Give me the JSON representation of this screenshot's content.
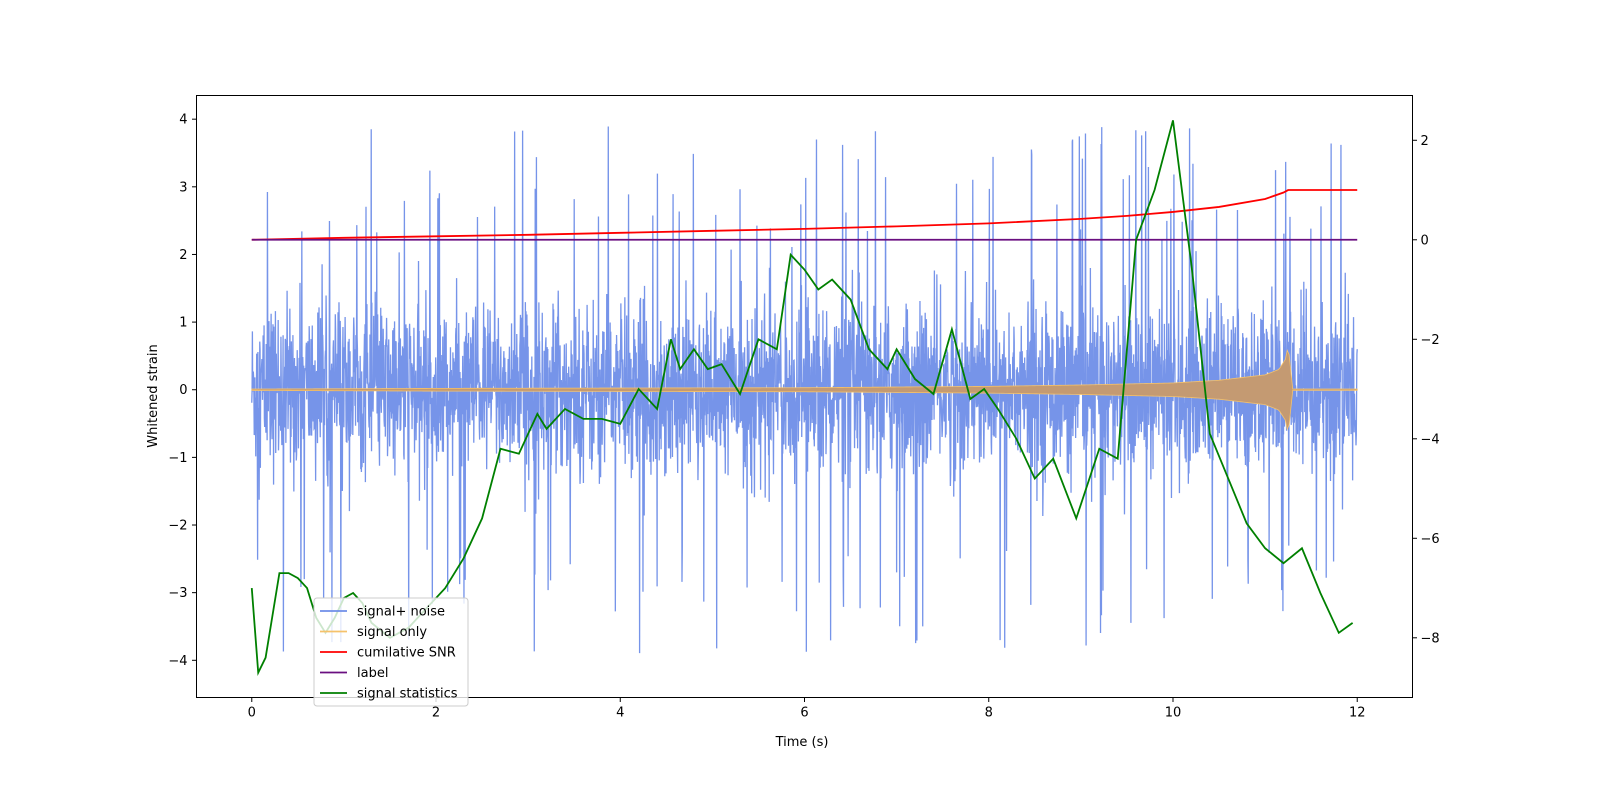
{
  "chart_data": {
    "type": "line",
    "title": "",
    "xlabel": "Time (s)",
    "ylabel": "Whitened strain",
    "y2label": "",
    "xlim": [
      -0.6,
      12.6
    ],
    "ylim": [
      -4.55,
      4.35
    ],
    "y2lim": [
      -9.2,
      2.9
    ],
    "xticks": [
      "0",
      "2",
      "4",
      "6",
      "8",
      "10",
      "12"
    ],
    "yticks": [
      "4",
      "3",
      "2",
      "1",
      "0",
      "−1",
      "−2",
      "−3",
      "−4"
    ],
    "y2ticks": [
      "2",
      "0",
      "−2",
      "−4",
      "−6",
      "−8"
    ],
    "grid": false,
    "legend_position": "lower-left",
    "legend": [
      "signal+ noise",
      "signal only",
      "cumilative SNR",
      "label",
      "signal statistics"
    ],
    "colors": {
      "noise": "#6f8ee8",
      "signal": "#f5c26b",
      "signal_fill": "#c49a72",
      "snr": "#ff0000",
      "label": "#6a0f80",
      "statistics": "#008000"
    },
    "series": [
      {
        "name": "signal+ noise",
        "axis": "left",
        "description_values": {
          "mean": 0.0,
          "typical_range": [
            -1.5,
            1.9
          ],
          "extremes": [
            -4.15,
            3.97
          ]
        }
      },
      {
        "name": "signal only",
        "axis": "left",
        "x": [
          0,
          2,
          4,
          6,
          8,
          9,
          10,
          10.5,
          11,
          11.15,
          11.22,
          11.25,
          11.3,
          12
        ],
        "envelope": [
          0.01,
          0.02,
          0.025,
          0.03,
          0.05,
          0.07,
          0.1,
          0.14,
          0.22,
          0.3,
          0.45,
          0.65,
          0.01,
          0.01
        ]
      },
      {
        "name": "cumilative SNR",
        "axis": "right",
        "x": [
          0,
          1,
          2,
          3,
          4,
          5,
          6,
          7,
          8,
          9,
          9.5,
          10,
          10.5,
          11,
          11.2,
          11.25,
          12
        ],
        "y": [
          0.0,
          0.04,
          0.07,
          0.1,
          0.14,
          0.18,
          0.22,
          0.27,
          0.33,
          0.42,
          0.48,
          0.56,
          0.66,
          0.82,
          0.95,
          1.0,
          1.0
        ]
      },
      {
        "name": "label",
        "axis": "right",
        "x": [
          0,
          12
        ],
        "y": [
          0,
          0
        ]
      },
      {
        "name": "signal statistics",
        "axis": "right",
        "x": [
          0,
          0.07,
          0.15,
          0.3,
          0.4,
          0.5,
          0.6,
          0.7,
          0.8,
          0.9,
          1.0,
          1.1,
          1.2,
          1.3,
          1.5,
          1.7,
          1.9,
          2.1,
          2.3,
          2.5,
          2.7,
          2.9,
          3.1,
          3.2,
          3.4,
          3.6,
          3.8,
          4.0,
          4.2,
          4.4,
          4.55,
          4.65,
          4.8,
          4.95,
          5.1,
          5.3,
          5.5,
          5.7,
          5.85,
          6.0,
          6.15,
          6.3,
          6.5,
          6.7,
          6.9,
          7.0,
          7.2,
          7.4,
          7.6,
          7.8,
          7.95,
          8.1,
          8.3,
          8.5,
          8.7,
          8.95,
          9.2,
          9.4,
          9.6,
          9.8,
          10.0,
          10.2,
          10.4,
          10.6,
          10.8,
          11.0,
          11.2,
          11.4,
          11.6,
          11.8,
          11.95
        ],
        "y": [
          -7.0,
          -8.7,
          -8.4,
          -6.7,
          -6.7,
          -6.8,
          -7.0,
          -7.6,
          -7.9,
          -7.6,
          -7.2,
          -7.1,
          -7.3,
          -7.7,
          -8.0,
          -7.8,
          -7.4,
          -7.0,
          -6.4,
          -5.6,
          -4.2,
          -4.3,
          -3.5,
          -3.8,
          -3.4,
          -3.6,
          -3.6,
          -3.7,
          -3.0,
          -3.4,
          -2.0,
          -2.6,
          -2.2,
          -2.6,
          -2.5,
          -3.1,
          -2.0,
          -2.2,
          -0.3,
          -0.6,
          -1.0,
          -0.8,
          -1.2,
          -2.2,
          -2.6,
          -2.2,
          -2.8,
          -3.1,
          -1.8,
          -3.2,
          -3.0,
          -3.4,
          -4.0,
          -4.8,
          -4.4,
          -5.6,
          -4.2,
          -4.4,
          0.0,
          1.0,
          2.4,
          -0.5,
          -3.9,
          -4.8,
          -5.7,
          -6.2,
          -6.5,
          -6.2,
          -7.1,
          -7.9,
          -7.7
        ]
      }
    ]
  }
}
